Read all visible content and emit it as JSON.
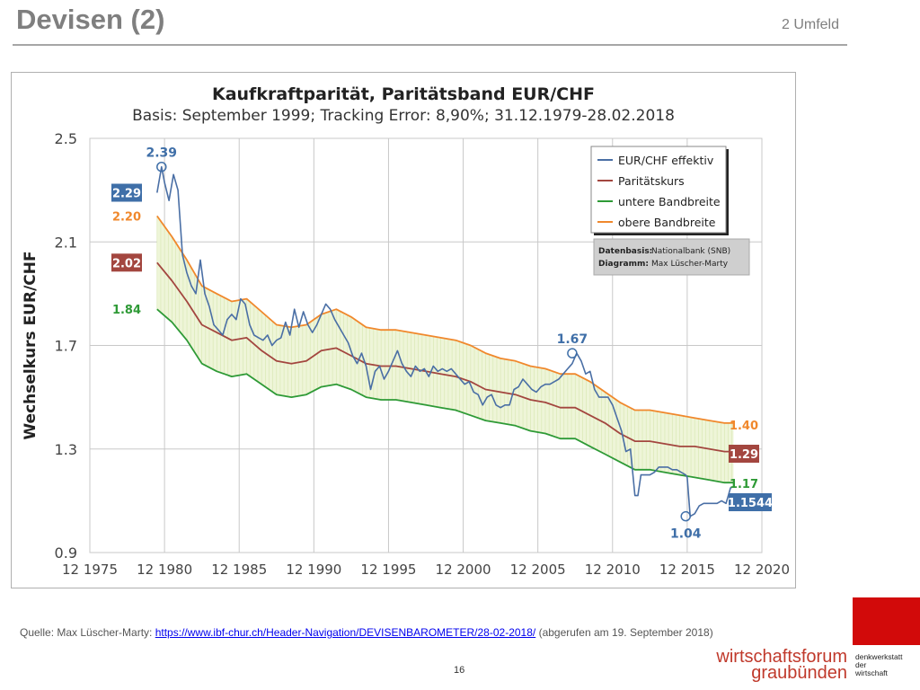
{
  "slide": {
    "title": "Devisen (2)",
    "section": "2 Umfeld",
    "source_prefix": "Quelle: Max Lüscher-Marty: ",
    "source_url": "https://www.ibf-chur.ch/Header-Navigation/DEVISENBAROMETER/28-02-2018/",
    "source_suffix": " (abgerufen am 19. September 2018)",
    "page_number": "16",
    "logo_line1": "wirtschaftsforum",
    "logo_line2": "graubünden",
    "logo_tag1": "denkwerkstatt",
    "logo_tag2": "der",
    "logo_tag3": "wirtschaft"
  },
  "chart_data": {
    "type": "line",
    "title": "Kaufkraftparität, Paritätsband EUR/CHF",
    "subtitle": "Basis: September 1999; Tracking Error: 8,90%; 31.12.1979-28.02.2018",
    "ylabel": "Wechselkurs EUR/CHF",
    "xlabel": "",
    "xlim": [
      1975,
      2020
    ],
    "ylim": [
      0.9,
      2.5
    ],
    "xticks": [
      1975,
      1980,
      1985,
      1990,
      1995,
      2000,
      2005,
      2010,
      2015,
      2020
    ],
    "xtick_labels": [
      "12 1975",
      "12 1980",
      "12 1985",
      "12 1990",
      "12 1995",
      "12 2000",
      "12 2005",
      "12 2010",
      "12 2015",
      "12 2020"
    ],
    "yticks": [
      0.9,
      1.3,
      1.7,
      2.1,
      2.5
    ],
    "ytick_labels": [
      "0.9",
      "1.3",
      "1.7",
      "2.1",
      "2.5"
    ],
    "grid": true,
    "legend_position": "top-right",
    "series": [
      {
        "name": "EUR/CHF effektiv",
        "color": "#4a6fa5",
        "x": [
          1979.5,
          1979.8,
          1980.0,
          1980.3,
          1980.6,
          1980.9,
          1981.2,
          1981.5,
          1981.8,
          1982.1,
          1982.4,
          1982.7,
          1983.0,
          1983.3,
          1983.6,
          1983.9,
          1984.2,
          1984.5,
          1984.8,
          1985.1,
          1985.4,
          1985.7,
          1986.0,
          1986.3,
          1986.6,
          1986.9,
          1987.2,
          1987.5,
          1987.8,
          1988.1,
          1988.4,
          1988.7,
          1989.0,
          1989.3,
          1989.6,
          1989.9,
          1990.2,
          1990.5,
          1990.8,
          1991.1,
          1991.4,
          1991.7,
          1992.0,
          1992.3,
          1992.6,
          1992.9,
          1993.2,
          1993.5,
          1993.8,
          1994.1,
          1994.4,
          1994.7,
          1995.0,
          1995.3,
          1995.6,
          1995.9,
          1996.2,
          1996.5,
          1996.8,
          1997.1,
          1997.4,
          1997.7,
          1998.0,
          1998.3,
          1998.6,
          1998.9,
          1999.2,
          1999.5,
          1999.8,
          2000.1,
          2000.4,
          2000.7,
          2001.0,
          2001.3,
          2001.6,
          2001.9,
          2002.2,
          2002.5,
          2002.8,
          2003.1,
          2003.4,
          2003.7,
          2004.0,
          2004.3,
          2004.6,
          2004.9,
          2005.2,
          2005.5,
          2005.8,
          2006.1,
          2006.4,
          2006.7,
          2007.0,
          2007.3,
          2007.6,
          2007.9,
          2008.2,
          2008.5,
          2008.8,
          2009.1,
          2009.4,
          2009.7,
          2010.0,
          2010.3,
          2010.6,
          2010.9,
          2011.2,
          2011.5,
          2011.7,
          2011.9,
          2012.2,
          2012.5,
          2012.8,
          2013.1,
          2013.4,
          2013.7,
          2014.0,
          2014.3,
          2014.6,
          2014.9,
          2015.0,
          2015.2,
          2015.5,
          2015.8,
          2016.1,
          2016.4,
          2016.7,
          2017.0,
          2017.3,
          2017.6,
          2017.9,
          2018.1
        ],
        "y": [
          2.29,
          2.39,
          2.33,
          2.26,
          2.36,
          2.3,
          2.05,
          1.98,
          1.93,
          1.9,
          2.03,
          1.9,
          1.85,
          1.78,
          1.76,
          1.74,
          1.8,
          1.82,
          1.8,
          1.88,
          1.86,
          1.78,
          1.74,
          1.73,
          1.72,
          1.74,
          1.7,
          1.72,
          1.73,
          1.79,
          1.74,
          1.84,
          1.77,
          1.83,
          1.78,
          1.75,
          1.78,
          1.82,
          1.86,
          1.84,
          1.8,
          1.77,
          1.74,
          1.71,
          1.66,
          1.63,
          1.67,
          1.62,
          1.53,
          1.6,
          1.62,
          1.57,
          1.6,
          1.64,
          1.68,
          1.63,
          1.6,
          1.58,
          1.62,
          1.6,
          1.61,
          1.58,
          1.62,
          1.6,
          1.61,
          1.6,
          1.61,
          1.59,
          1.57,
          1.55,
          1.56,
          1.52,
          1.51,
          1.47,
          1.5,
          1.51,
          1.47,
          1.46,
          1.47,
          1.47,
          1.53,
          1.54,
          1.57,
          1.55,
          1.53,
          1.52,
          1.54,
          1.55,
          1.55,
          1.56,
          1.57,
          1.59,
          1.61,
          1.63,
          1.67,
          1.64,
          1.59,
          1.6,
          1.53,
          1.5,
          1.5,
          1.5,
          1.47,
          1.42,
          1.37,
          1.29,
          1.3,
          1.12,
          1.12,
          1.2,
          1.2,
          1.2,
          1.21,
          1.23,
          1.23,
          1.23,
          1.22,
          1.22,
          1.21,
          1.2,
          1.19,
          1.04,
          1.05,
          1.08,
          1.09,
          1.09,
          1.09,
          1.09,
          1.1,
          1.09,
          1.15,
          1.1544
        ]
      },
      {
        "name": "Paritätskurs",
        "color": "#a3463f",
        "x": [
          1979.5,
          1980.5,
          1981.5,
          1982.5,
          1983.5,
          1984.5,
          1985.5,
          1986.5,
          1987.5,
          1988.5,
          1989.5,
          1990.5,
          1991.5,
          1992.5,
          1993.5,
          1994.5,
          1995.5,
          1996.5,
          1997.5,
          1998.5,
          1999.5,
          2000.5,
          2001.5,
          2002.5,
          2003.5,
          2004.5,
          2005.5,
          2006.5,
          2007.5,
          2008.5,
          2009.5,
          2010.5,
          2011.5,
          2012.5,
          2013.5,
          2014.5,
          2015.5,
          2016.5,
          2017.5,
          2018.1
        ],
        "y": [
          2.02,
          1.95,
          1.87,
          1.78,
          1.75,
          1.72,
          1.73,
          1.68,
          1.64,
          1.63,
          1.64,
          1.68,
          1.69,
          1.66,
          1.63,
          1.62,
          1.62,
          1.61,
          1.6,
          1.59,
          1.58,
          1.56,
          1.53,
          1.52,
          1.51,
          1.49,
          1.48,
          1.46,
          1.46,
          1.43,
          1.4,
          1.36,
          1.33,
          1.33,
          1.32,
          1.31,
          1.31,
          1.3,
          1.29,
          1.29
        ]
      },
      {
        "name": "untere Bandbreite",
        "color": "#2e9a36",
        "x": [
          1979.5,
          1980.5,
          1981.5,
          1982.5,
          1983.5,
          1984.5,
          1985.5,
          1986.5,
          1987.5,
          1988.5,
          1989.5,
          1990.5,
          1991.5,
          1992.5,
          1993.5,
          1994.5,
          1995.5,
          1996.5,
          1997.5,
          1998.5,
          1999.5,
          2000.5,
          2001.5,
          2002.5,
          2003.5,
          2004.5,
          2005.5,
          2006.5,
          2007.5,
          2008.5,
          2009.5,
          2010.5,
          2011.5,
          2012.5,
          2013.5,
          2014.5,
          2015.5,
          2016.5,
          2017.5,
          2018.1
        ],
        "y": [
          1.84,
          1.79,
          1.72,
          1.63,
          1.6,
          1.58,
          1.59,
          1.55,
          1.51,
          1.5,
          1.51,
          1.54,
          1.55,
          1.53,
          1.5,
          1.49,
          1.49,
          1.48,
          1.47,
          1.46,
          1.45,
          1.43,
          1.41,
          1.4,
          1.39,
          1.37,
          1.36,
          1.34,
          1.34,
          1.31,
          1.28,
          1.25,
          1.22,
          1.22,
          1.21,
          1.2,
          1.19,
          1.18,
          1.17,
          1.17
        ]
      },
      {
        "name": "obere Bandbreite",
        "color": "#f0882c",
        "x": [
          1979.5,
          1980.5,
          1981.5,
          1982.5,
          1983.5,
          1984.5,
          1985.5,
          1986.5,
          1987.5,
          1988.5,
          1989.5,
          1990.5,
          1991.5,
          1992.5,
          1993.5,
          1994.5,
          1995.5,
          1996.5,
          1997.5,
          1998.5,
          1999.5,
          2000.5,
          2001.5,
          2002.5,
          2003.5,
          2004.5,
          2005.5,
          2006.5,
          2007.5,
          2008.5,
          2009.5,
          2010.5,
          2011.5,
          2012.5,
          2013.5,
          2014.5,
          2015.5,
          2016.5,
          2017.5,
          2018.1
        ],
        "y": [
          2.2,
          2.12,
          2.03,
          1.93,
          1.9,
          1.87,
          1.88,
          1.83,
          1.78,
          1.77,
          1.78,
          1.82,
          1.84,
          1.81,
          1.77,
          1.76,
          1.76,
          1.75,
          1.74,
          1.73,
          1.72,
          1.7,
          1.67,
          1.65,
          1.64,
          1.62,
          1.61,
          1.59,
          1.59,
          1.56,
          1.52,
          1.48,
          1.45,
          1.45,
          1.44,
          1.43,
          1.42,
          1.41,
          1.4,
          1.4
        ]
      }
    ],
    "annotations": [
      {
        "text": "2.39",
        "x": 1979.8,
        "y": 2.39,
        "color": "#3f6fa8",
        "circled": true
      },
      {
        "text": "1.67",
        "x": 2007.3,
        "y": 1.67,
        "color": "#3f6fa8",
        "circled": true
      },
      {
        "text": "1.04",
        "x": 2014.9,
        "y": 1.04,
        "color": "#3f6fa8",
        "circled": true
      }
    ],
    "start_labels": [
      {
        "text": "2.29",
        "y": 2.29,
        "style": "box",
        "color": "#3f6fa8"
      },
      {
        "text": "2.20",
        "y": 2.2,
        "style": "text",
        "color": "#f0882c"
      },
      {
        "text": "2.02",
        "y": 2.02,
        "style": "box",
        "color": "#a3463f"
      },
      {
        "text": "1.84",
        "y": 1.84,
        "style": "text",
        "color": "#2e9a36"
      }
    ],
    "end_labels": [
      {
        "text": "1.40",
        "y": 1.4,
        "style": "text",
        "color": "#f0882c"
      },
      {
        "text": "1.29",
        "y": 1.29,
        "style": "box",
        "color": "#a3463f"
      },
      {
        "text": "1.17",
        "y": 1.17,
        "style": "text",
        "color": "#2e9a36"
      },
      {
        "text": "1.1544",
        "y": 1.1544,
        "style": "box",
        "color": "#3f6fa8"
      }
    ],
    "info_box": {
      "line1_label": "Datenbasis:",
      "line1_value": "Nationalbank (SNB)",
      "line2_label": "Diagramm:",
      "line2_value": "Max Lüscher-Marty"
    },
    "band_fill_color": "#eef5d8"
  }
}
